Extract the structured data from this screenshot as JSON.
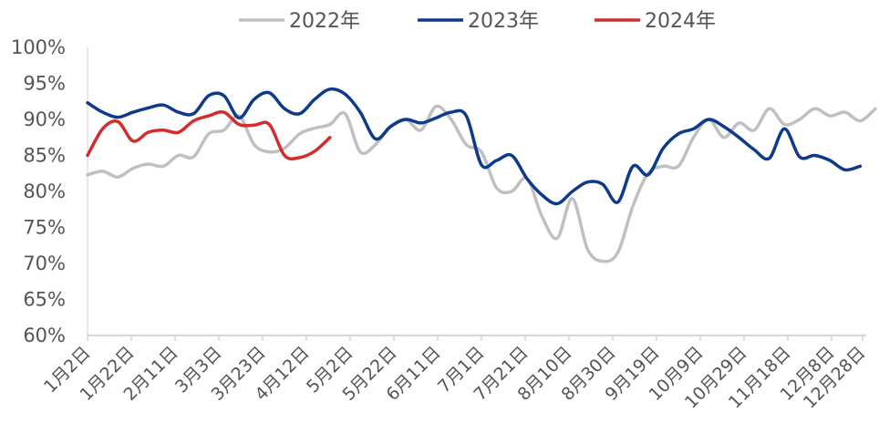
{
  "chart_data": {
    "type": "line",
    "ylim": [
      60,
      100
    ],
    "yticks": [
      "60%",
      "65%",
      "70%",
      "75%",
      "80%",
      "85%",
      "90%",
      "95%",
      "100%"
    ],
    "x_labels": [
      "1月2日",
      "1月22日",
      "2月11日",
      "3月3日",
      "3月23日",
      "4月12日",
      "5月2日",
      "5月22日",
      "6月11日",
      "7月1日",
      "7月21日",
      "8月10日",
      "8月30日",
      "9月19日",
      "10月9日",
      "10月29日",
      "11月18日",
      "12月8日",
      "12月28日"
    ],
    "legend_position": "top",
    "grid": false,
    "series": [
      {
        "name": "2022年",
        "color": "#c0c0c0",
        "values": [
          82.3,
          82.8,
          82.0,
          83.2,
          83.8,
          83.5,
          85.0,
          84.8,
          88.0,
          88.5,
          90.5,
          86.5,
          85.5,
          86.0,
          88.0,
          88.8,
          89.3,
          90.8,
          85.5,
          86.5,
          89.0,
          90.0,
          88.5,
          91.8,
          90.0,
          86.5,
          85.5,
          80.5,
          80.0,
          81.8,
          76.5,
          73.5,
          79.0,
          72.0,
          70.3,
          71.5,
          78.0,
          82.5,
          83.5,
          83.5,
          87.5,
          90.0,
          87.5,
          89.5,
          88.5,
          91.5,
          89.3,
          90.0,
          91.5,
          90.5,
          91.0,
          89.8,
          91.5
        ]
      },
      {
        "name": "2023年",
        "color": "#0d3b8a",
        "values": [
          92.3,
          91.0,
          90.3,
          91.0,
          91.6,
          92.0,
          91.0,
          90.8,
          93.3,
          93.3,
          90.2,
          92.8,
          93.7,
          91.5,
          90.8,
          92.8,
          94.2,
          93.5,
          91.0,
          87.3,
          89.0,
          90.0,
          89.5,
          90.2,
          91.0,
          90.5,
          83.7,
          84.3,
          85.0,
          81.8,
          79.5,
          78.3,
          80.0,
          81.3,
          81.0,
          78.5,
          83.5,
          82.3,
          86.0,
          88.0,
          88.7,
          90.0,
          89.0,
          87.5,
          85.8,
          84.6,
          88.7,
          84.8,
          85.0,
          84.3,
          83.0,
          83.5
        ]
      },
      {
        "name": "2024年",
        "color": "#d22d2d",
        "values": [
          85.0,
          88.7,
          89.7,
          87.0,
          88.2,
          88.5,
          88.2,
          89.8,
          90.5,
          91.0,
          89.3,
          89.2,
          89.3,
          85.0,
          84.7,
          85.6,
          87.5
        ]
      }
    ]
  }
}
